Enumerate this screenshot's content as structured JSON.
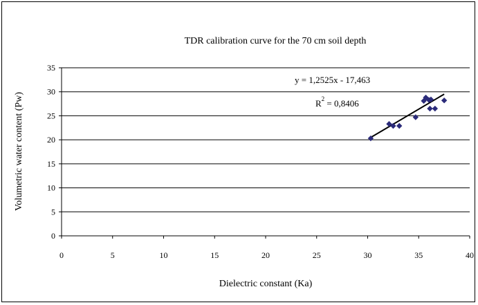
{
  "chart_data": {
    "type": "scatter",
    "title": "TDR calibration curve for the 70 cm soil depth",
    "xlabel": "Dielectric constant (Ka)",
    "ylabel": "Volumetric water content (Pw)",
    "xlim": [
      0,
      40
    ],
    "ylim": [
      0,
      35
    ],
    "xticks": [
      "0",
      "5",
      "10",
      "15",
      "20",
      "25",
      "30",
      "35",
      "40"
    ],
    "yticks": [
      "0",
      "5",
      "10",
      "15",
      "20",
      "25",
      "30",
      "35"
    ],
    "grid": "horizontal",
    "marker_color": "#2b2b7a",
    "trendline": {
      "equation": "y = 1,2525x - 17,463",
      "r2_label": "R",
      "r2_sup": "2",
      "r2_value": " = 0,8406",
      "slope": 1.2525,
      "intercept": -17.463,
      "x_range": [
        30.3,
        37.5
      ]
    },
    "points": [
      {
        "x": 30.3,
        "y": 20.3
      },
      {
        "x": 32.1,
        "y": 23.3
      },
      {
        "x": 32.5,
        "y": 22.9
      },
      {
        "x": 33.1,
        "y": 22.9
      },
      {
        "x": 34.7,
        "y": 24.7
      },
      {
        "x": 35.5,
        "y": 28.1
      },
      {
        "x": 35.7,
        "y": 28.8
      },
      {
        "x": 36.0,
        "y": 28.3
      },
      {
        "x": 36.1,
        "y": 26.5
      },
      {
        "x": 36.2,
        "y": 28.4
      },
      {
        "x": 36.6,
        "y": 26.5
      },
      {
        "x": 37.5,
        "y": 28.2
      }
    ]
  }
}
